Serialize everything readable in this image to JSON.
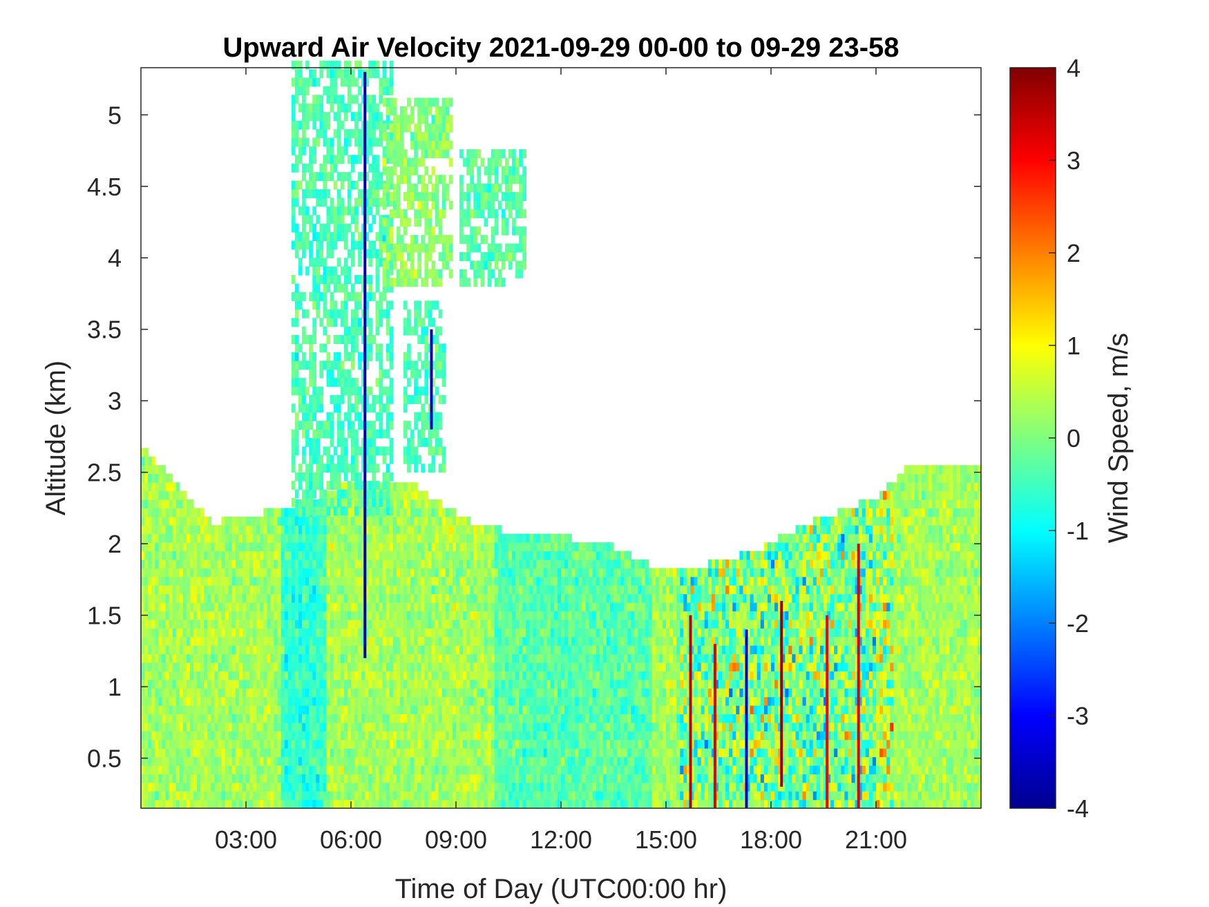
{
  "chart_data": {
    "type": "heatmap",
    "title": "Upward Air Velocity 2021-09-29 00-00 to 09-29 23-58",
    "xlabel": "Time of Day (UTC00:00 hr)",
    "ylabel": "Altitude (km)",
    "colorbar_label": "Wind Speed, m/s",
    "colormap": "jet",
    "xlim": [
      0,
      24
    ],
    "ylim": [
      0.15,
      5.33
    ],
    "clim": [
      -4,
      4
    ],
    "x_ticks": [
      {
        "value": 3,
        "label": "03:00"
      },
      {
        "value": 6,
        "label": "06:00"
      },
      {
        "value": 9,
        "label": "09:00"
      },
      {
        "value": 12,
        "label": "12:00"
      },
      {
        "value": 15,
        "label": "15:00"
      },
      {
        "value": 18,
        "label": "18:00"
      },
      {
        "value": 21,
        "label": "21:00"
      }
    ],
    "y_ticks": [
      {
        "value": 0.5,
        "label": "0.5"
      },
      {
        "value": 1,
        "label": "1"
      },
      {
        "value": 1.5,
        "label": "1.5"
      },
      {
        "value": 2,
        "label": "2"
      },
      {
        "value": 2.5,
        "label": "2.5"
      },
      {
        "value": 3,
        "label": "3"
      },
      {
        "value": 3.5,
        "label": "3.5"
      },
      {
        "value": 4,
        "label": "4"
      },
      {
        "value": 4.5,
        "label": "4.5"
      },
      {
        "value": 5,
        "label": "5"
      }
    ],
    "colorbar_ticks": [
      {
        "value": 4,
        "label": "4"
      },
      {
        "value": 3,
        "label": "3"
      },
      {
        "value": 2,
        "label": "2"
      },
      {
        "value": 1,
        "label": "1"
      },
      {
        "value": 0,
        "label": "0"
      },
      {
        "value": -1,
        "label": "-1"
      },
      {
        "value": -2,
        "label": "-2"
      },
      {
        "value": -3,
        "label": "-3"
      },
      {
        "value": -4,
        "label": "-4"
      }
    ],
    "boundary_layer_top_km": [
      {
        "x": 0.0,
        "top": 2.65
      },
      {
        "x": 0.8,
        "top": 2.45
      },
      {
        "x": 1.5,
        "top": 2.25
      },
      {
        "x": 2.0,
        "top": 2.12
      },
      {
        "x": 4.0,
        "top": 2.22
      },
      {
        "x": 6.0,
        "top": 2.4
      },
      {
        "x": 7.5,
        "top": 2.42
      },
      {
        "x": 9.5,
        "top": 2.1
      },
      {
        "x": 11.5,
        "top": 2.02
      },
      {
        "x": 13.0,
        "top": 2.0
      },
      {
        "x": 14.5,
        "top": 1.82
      },
      {
        "x": 16.0,
        "top": 1.82
      },
      {
        "x": 17.5,
        "top": 1.92
      },
      {
        "x": 19.0,
        "top": 2.12
      },
      {
        "x": 20.0,
        "top": 2.2
      },
      {
        "x": 21.0,
        "top": 2.3
      },
      {
        "x": 22.0,
        "top": 2.55
      },
      {
        "x": 24.0,
        "top": 2.55
      }
    ],
    "cloud_regions": [
      {
        "x0": 4.3,
        "x1": 7.1,
        "y0": 2.2,
        "y1": 5.33,
        "mean": -0.4
      },
      {
        "x0": 6.9,
        "x1": 8.8,
        "y0": 3.8,
        "y1": 5.1,
        "mean": 0.1
      },
      {
        "x0": 9.1,
        "x1": 10.9,
        "y0": 3.8,
        "y1": 4.7,
        "mean": -0.3
      },
      {
        "x0": 7.5,
        "x1": 8.6,
        "y0": 2.5,
        "y1": 3.7,
        "mean": -0.4
      }
    ],
    "strong_features": [
      {
        "x": 6.4,
        "y0": 1.2,
        "y1": 5.3,
        "value": -3.6
      },
      {
        "x": 8.3,
        "y0": 2.8,
        "y1": 3.5,
        "value": -3.4
      },
      {
        "x": 15.7,
        "y0": 0.15,
        "y1": 1.5,
        "value": 3.5
      },
      {
        "x": 16.4,
        "y0": 0.15,
        "y1": 1.3,
        "value": 3.2
      },
      {
        "x": 17.3,
        "y0": 0.15,
        "y1": 1.4,
        "value": -3.2
      },
      {
        "x": 18.3,
        "y0": 0.3,
        "y1": 1.6,
        "value": 3.8
      },
      {
        "x": 19.6,
        "y0": 0.15,
        "y1": 1.5,
        "value": 3.0
      },
      {
        "x": 20.5,
        "y0": 0.15,
        "y1": 2.0,
        "value": 3.2
      }
    ],
    "grid": false
  }
}
